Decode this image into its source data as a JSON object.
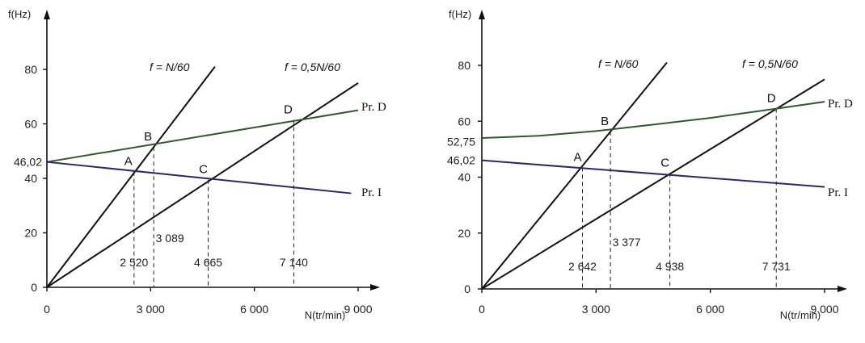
{
  "chart_data": [
    {
      "type": "line",
      "title": "",
      "xlabel": "N(tr/min)",
      "ylabel": "f(Hz)",
      "xlim": [
        0,
        9000
      ],
      "ylim": [
        0,
        80
      ],
      "xticks": [
        0,
        3000,
        6000,
        9000
      ],
      "xtick_labels": [
        "0",
        "3 000",
        "6 000",
        "9 000"
      ],
      "yticks": [
        0,
        20,
        40,
        60,
        80
      ],
      "ytick_labels": [
        "0",
        "20",
        "40",
        "60",
        "80"
      ],
      "extra_y_labels": [
        {
          "value": 46.02,
          "label": "46,02"
        }
      ],
      "series": [
        {
          "name": "f = N/60",
          "color": "#111111",
          "x": [
            0,
            4860
          ],
          "y": [
            0,
            81
          ]
        },
        {
          "name": "f = 0,5N/60",
          "color": "#111111",
          "x": [
            0,
            9000
          ],
          "y": [
            0,
            75
          ]
        },
        {
          "name": "Pr. D",
          "color": "#2e5a2e",
          "x": [
            0,
            9000
          ],
          "y": [
            46.02,
            65
          ]
        },
        {
          "name": "Pr. I",
          "color": "#2a2a66",
          "x": [
            0,
            8800
          ],
          "y": [
            46.02,
            34.5
          ]
        }
      ],
      "points": [
        {
          "label": "A",
          "x": 2520,
          "y": 42.5,
          "drop_label": "2 520",
          "label_pos": "left"
        },
        {
          "label": "B",
          "x": 3089,
          "y": 51.5,
          "drop_label": "3 089",
          "label_pos": "left"
        },
        {
          "label": "C",
          "x": 4665,
          "y": 39.5,
          "drop_label": "4 665",
          "label_pos": "up"
        },
        {
          "label": "D",
          "x": 7140,
          "y": 61.5,
          "drop_label": "7 140",
          "label_pos": "left"
        }
      ]
    },
    {
      "type": "line",
      "title": "",
      "xlabel": "N(tr/min)",
      "ylabel": "f(Hz)",
      "xlim": [
        0,
        9000
      ],
      "ylim": [
        0,
        80
      ],
      "xticks": [
        0,
        3000,
        6000,
        9000
      ],
      "xtick_labels": [
        "0",
        "3 000",
        "6 000",
        "9 000"
      ],
      "yticks": [
        0,
        20,
        40,
        60,
        80
      ],
      "ytick_labels": [
        "0",
        "20",
        "40",
        "60",
        "80"
      ],
      "extra_y_labels": [
        {
          "value": 52.75,
          "label": "52,75"
        },
        {
          "value": 46.02,
          "label": "46,02"
        }
      ],
      "series": [
        {
          "name": "f = N/60",
          "color": "#111111",
          "x": [
            0,
            4860
          ],
          "y": [
            0,
            81
          ]
        },
        {
          "name": "f = 0,5N/60",
          "color": "#111111",
          "x": [
            0,
            9000
          ],
          "y": [
            0,
            75
          ]
        },
        {
          "name": "Pr. D",
          "color": "#2e5a2e",
          "x": [
            0,
            1500,
            3000,
            4500,
            6000,
            7731,
            9000
          ],
          "y": [
            54,
            54.8,
            56.5,
            58.8,
            61.2,
            64.5,
            67
          ]
        },
        {
          "name": "Pr. I",
          "color": "#2a2a66",
          "x": [
            0,
            9000
          ],
          "y": [
            46.02,
            36.5
          ]
        }
      ],
      "points": [
        {
          "label": "A",
          "x": 2642,
          "y": 43.5,
          "drop_label": "2 642",
          "label_pos": "up"
        },
        {
          "label": "B",
          "x": 3377,
          "y": 56.3,
          "drop_label": "3 377",
          "label_pos": "left"
        },
        {
          "label": "C",
          "x": 4938,
          "y": 41.5,
          "drop_label": "4 938",
          "label_pos": "up"
        },
        {
          "label": "D",
          "x": 7731,
          "y": 64.5,
          "drop_label": "7 731",
          "label_pos": "up"
        }
      ]
    }
  ]
}
